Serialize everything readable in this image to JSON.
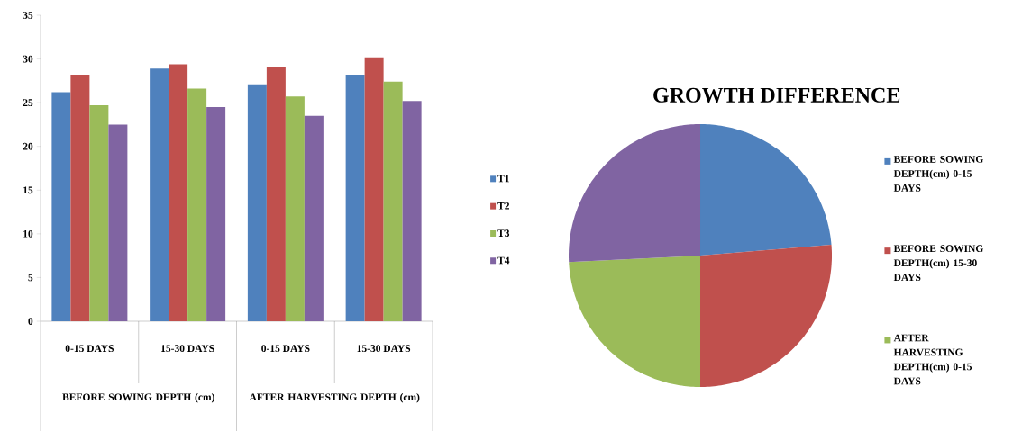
{
  "chart_data": [
    {
      "type": "bar",
      "categories": [
        "0-15 DAYS",
        "15-30 DAYS",
        "0-15 DAYS",
        "15-30 DAYS"
      ],
      "series": [
        {
          "name": "T1",
          "color": "#4f81bd",
          "values": [
            26.2,
            28.9,
            27.1,
            28.2
          ]
        },
        {
          "name": "T2",
          "color": "#c0504d",
          "values": [
            28.2,
            29.4,
            29.1,
            30.2
          ]
        },
        {
          "name": "T3",
          "color": "#9bbb59",
          "values": [
            24.7,
            26.6,
            25.7,
            27.4
          ]
        },
        {
          "name": "T4",
          "color": "#8064a2",
          "values": [
            22.5,
            24.5,
            23.5,
            25.2
          ]
        }
      ],
      "ylim": [
        0,
        35
      ],
      "yticks": [
        0,
        5,
        10,
        15,
        20,
        25,
        30,
        35
      ],
      "legend": "right",
      "annotations": [
        "BEFORE SOWING DEPTH (cm)",
        "AFTER HARVESTING DEPTH (cm)"
      ]
    },
    {
      "type": "pie",
      "title": "GROWTH DIFFERENCE",
      "categories": [
        "BEFORE SOWING DEPTH(cm) 0-15 DAYS",
        "BEFORE SOWING DEPTH(cm) 15-30 DAYS",
        "AFTER HARVESTING DEPTH(cm) 0-15 DAYS",
        null
      ],
      "values": [
        23.7,
        26.3,
        24.2,
        25.8
      ],
      "colors": [
        "#4f81bd",
        "#c0504d",
        "#9bbb59",
        "#8064a2"
      ],
      "legend": "right"
    }
  ]
}
